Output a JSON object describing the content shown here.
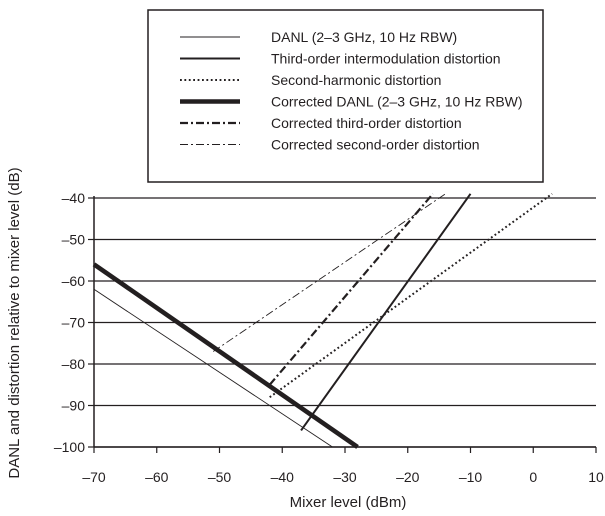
{
  "chart_data": {
    "type": "line",
    "title": "",
    "xlabel": "Mixer level (dBm)",
    "ylabel": "DANL and distortion relative to mixer level (dB)",
    "xlim": [
      -70,
      10
    ],
    "ylim": [
      -100,
      -40
    ],
    "x_ticks": [
      -70,
      -60,
      -50,
      -40,
      -30,
      -20,
      -10,
      0,
      10
    ],
    "x_tick_labels": [
      "–70",
      "–60",
      "–50",
      "–40",
      "–30",
      "–20",
      "–10",
      "0",
      "10"
    ],
    "y_ticks": [
      -40,
      -50,
      -60,
      -70,
      -80,
      -90,
      -100
    ],
    "y_tick_labels": [
      "–40",
      "–50",
      "–60",
      "–70",
      "–80",
      "–90",
      "–100"
    ],
    "grid": "horizontal",
    "legend_position": "top",
    "series": [
      {
        "name": "DANL (2–3 GHz, 10 Hz RBW)",
        "style": "thin-solid",
        "points": [
          [
            -70,
            -62
          ],
          [
            -32,
            -100
          ]
        ]
      },
      {
        "name": "Third-order intermodulation distortion",
        "style": "solid",
        "points": [
          [
            -37,
            -96
          ],
          [
            -10,
            -39
          ]
        ]
      },
      {
        "name": "Second-harmonic distortion",
        "style": "dotted",
        "points": [
          [
            -42,
            -88
          ],
          [
            3,
            -39
          ]
        ]
      },
      {
        "name": "Corrected DANL (2–3 GHz, 10 Hz RBW)",
        "style": "thick-solid",
        "points": [
          [
            -70,
            -56
          ],
          [
            -28,
            -100
          ]
        ]
      },
      {
        "name": "Corrected third-order distortion",
        "style": "dash-dot",
        "points": [
          [
            -42,
            -85
          ],
          [
            -16,
            -39
          ]
        ]
      },
      {
        "name": "Corrected second-order distortion",
        "style": "thin-dash-dot",
        "points": [
          [
            -51,
            -77
          ],
          [
            -14,
            -39
          ]
        ]
      }
    ],
    "colors": {
      "line": "#231f20",
      "background": "#ffffff"
    }
  }
}
